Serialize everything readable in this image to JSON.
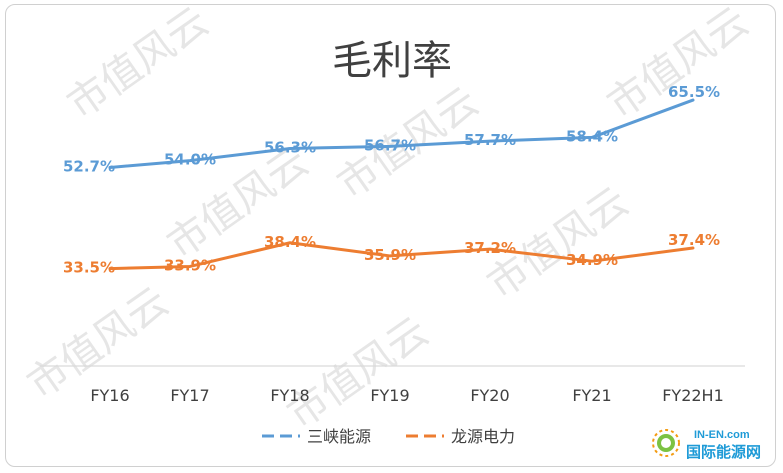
{
  "chart_data": {
    "type": "line",
    "title": "毛利率",
    "categories": [
      "FY16",
      "FY17",
      "FY18",
      "FY19",
      "FY20",
      "FY21",
      "FY22H1"
    ],
    "series": [
      {
        "name": "三峡能源",
        "color": "#5b9bd5",
        "values": [
          52.7,
          54.0,
          56.3,
          56.7,
          57.7,
          58.4,
          65.5
        ],
        "labels": [
          "52.7%",
          "54.0%",
          "56.3%",
          "56.7%",
          "57.7%",
          "58.4%",
          "65.5%"
        ]
      },
      {
        "name": "龙源电力",
        "color": "#ed7d31",
        "values": [
          33.5,
          33.9,
          38.4,
          35.9,
          37.2,
          34.9,
          37.4
        ],
        "labels": [
          "33.5%",
          "33.9%",
          "38.4%",
          "35.9%",
          "37.2%",
          "34.9%",
          "37.4%"
        ]
      }
    ],
    "ylim": [
      15,
      75
    ],
    "grid": false,
    "legend_position": "bottom"
  },
  "watermark": "市值风云",
  "brand": {
    "top": "IN-EN.com",
    "bottom": "国际能源网"
  }
}
